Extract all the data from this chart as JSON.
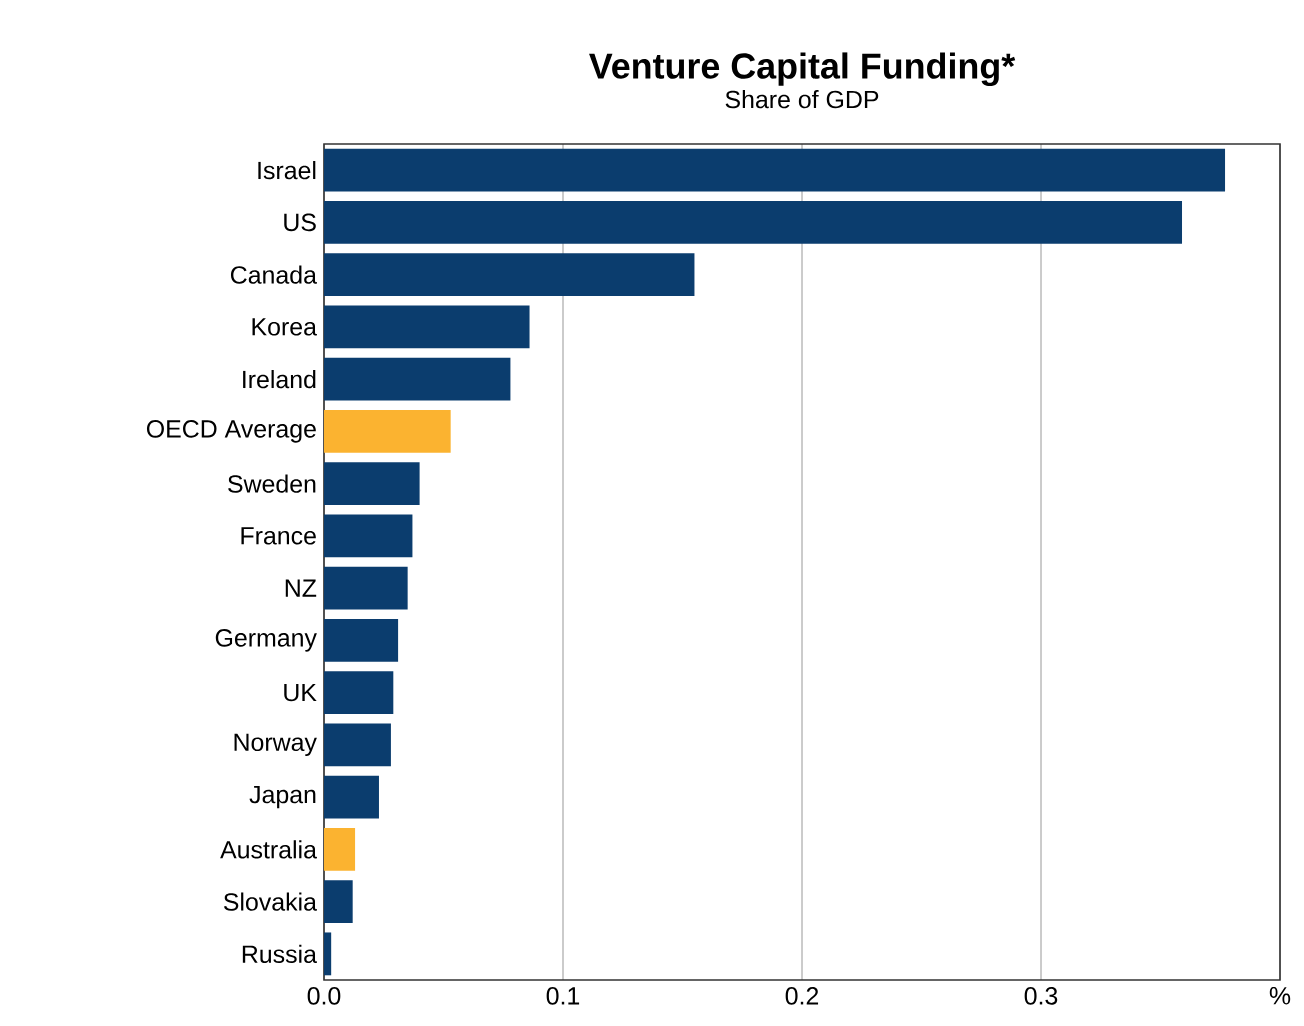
{
  "chart_data": {
    "type": "bar",
    "orientation": "horizontal",
    "title": "Venture Capital Funding*",
    "subtitle": "Share of GDP",
    "categories": [
      "Israel",
      "US",
      "Canada",
      "Korea",
      "Ireland",
      "OECD Average",
      "Sweden",
      "France",
      "NZ",
      "Germany",
      "UK",
      "Norway",
      "Japan",
      "Australia",
      "Slovakia",
      "Russia"
    ],
    "values": [
      0.377,
      0.359,
      0.155,
      0.086,
      0.078,
      0.053,
      0.04,
      0.037,
      0.035,
      0.031,
      0.029,
      0.028,
      0.023,
      0.013,
      0.012,
      0.003
    ],
    "colors": [
      "#0b3d6e",
      "#0b3d6e",
      "#0b3d6e",
      "#0b3d6e",
      "#0b3d6e",
      "#fbb330",
      "#0b3d6e",
      "#0b3d6e",
      "#0b3d6e",
      "#0b3d6e",
      "#0b3d6e",
      "#0b3d6e",
      "#0b3d6e",
      "#fbb330",
      "#0b3d6e",
      "#0b3d6e"
    ],
    "xlim": [
      0,
      0.4
    ],
    "xticks": [
      {
        "value": 0,
        "label": "0.0"
      },
      0.1,
      0.2,
      0.3,
      {
        "value": 0.4,
        "label": "%"
      }
    ],
    "grid": "x"
  }
}
